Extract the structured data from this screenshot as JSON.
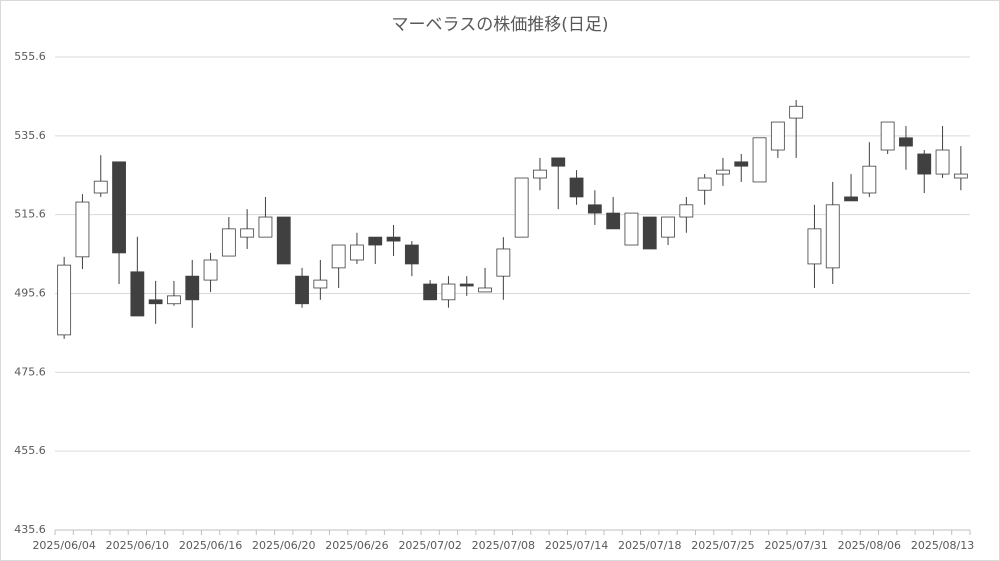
{
  "chart_data": {
    "type": "candlestick",
    "title": "マーベラスの株価推移(日足)",
    "categories": [
      "2025/06/04",
      null,
      null,
      null,
      "2025/06/10",
      null,
      null,
      null,
      "2025/06/16",
      null,
      null,
      null,
      "2025/06/20",
      null,
      null,
      null,
      "2025/06/26",
      null,
      null,
      null,
      "2025/07/02",
      null,
      null,
      null,
      "2025/07/08",
      null,
      null,
      null,
      "2025/07/14",
      null,
      null,
      null,
      "2025/07/18",
      null,
      null,
      null,
      "2025/07/25",
      null,
      null,
      null,
      "2025/07/31",
      null,
      null,
      null,
      "2025/08/06",
      null,
      null,
      null,
      "2025/08/13",
      null
    ],
    "open": [
      485.1,
      504.9,
      521.1,
      529.0,
      501.1,
      494.0,
      493.0,
      500.0,
      499.0,
      505.1,
      509.9,
      509.9,
      515.0,
      500.0,
      497.0,
      502.1,
      504.1,
      509.9,
      509.9,
      507.9,
      498.0,
      494.0,
      498.0,
      496.0,
      500.0,
      509.9,
      524.9,
      530.0,
      524.9,
      518.1,
      516.0,
      507.9,
      515.0,
      509.9,
      515.0,
      521.8,
      525.9,
      529.0,
      523.9,
      532.0,
      540.1,
      503.1,
      502.1,
      520.1,
      521.1,
      532.0,
      535.1,
      531.0,
      525.9,
      524.9
    ],
    "high": [
      504.9,
      520.8,
      530.7,
      529.0,
      510.0,
      498.8,
      498.8,
      504.1,
      505.9,
      515.0,
      517.0,
      520.1,
      515.0,
      502.1,
      504.1,
      507.9,
      511.0,
      509.9,
      513.0,
      508.9,
      499.0,
      500.0,
      500.0,
      502.1,
      509.9,
      524.9,
      530.0,
      530.0,
      526.9,
      521.8,
      520.1,
      516.0,
      515.0,
      515.0,
      520.1,
      525.9,
      530.0,
      531.0,
      535.1,
      539.1,
      544.7,
      518.1,
      523.9,
      525.9,
      534.0,
      539.1,
      538.1,
      532.0,
      538.1,
      533.0
    ],
    "low": [
      484.1,
      501.8,
      520.1,
      498.0,
      489.9,
      487.9,
      492.5,
      486.9,
      496.0,
      505.1,
      506.9,
      509.9,
      503.1,
      492.0,
      494.0,
      497.0,
      503.1,
      503.1,
      505.1,
      500.0,
      494.0,
      492.0,
      495.0,
      496.0,
      494.0,
      509.9,
      521.8,
      517.0,
      518.1,
      513.0,
      512.0,
      507.9,
      506.9,
      507.9,
      511.0,
      518.1,
      522.9,
      523.9,
      523.9,
      530.0,
      530.0,
      497.0,
      498.0,
      519.1,
      520.1,
      531.0,
      527.0,
      521.1,
      524.9,
      521.8
    ],
    "close": [
      502.8,
      518.8,
      524.1,
      505.9,
      489.9,
      493.0,
      495.0,
      494.0,
      504.1,
      512.0,
      512.0,
      515.0,
      503.1,
      493.0,
      499.0,
      507.9,
      507.9,
      507.9,
      508.9,
      503.1,
      494.0,
      498.0,
      497.5,
      497.0,
      506.9,
      524.9,
      526.9,
      527.9,
      520.1,
      516.0,
      512.0,
      516.0,
      506.9,
      515.0,
      518.1,
      524.9,
      526.9,
      527.9,
      535.1,
      539.1,
      543.1,
      512.0,
      518.1,
      519.1,
      527.9,
      539.1,
      533.0,
      525.9,
      532.0,
      525.9
    ],
    "up_color": "#ffffff",
    "down_color": "#404040",
    "ylim": [
      435.6,
      555.6
    ],
    "yticks": [
      435.6,
      455.6,
      475.6,
      495.6,
      515.6,
      535.6,
      555.6
    ],
    "grid": true
  }
}
